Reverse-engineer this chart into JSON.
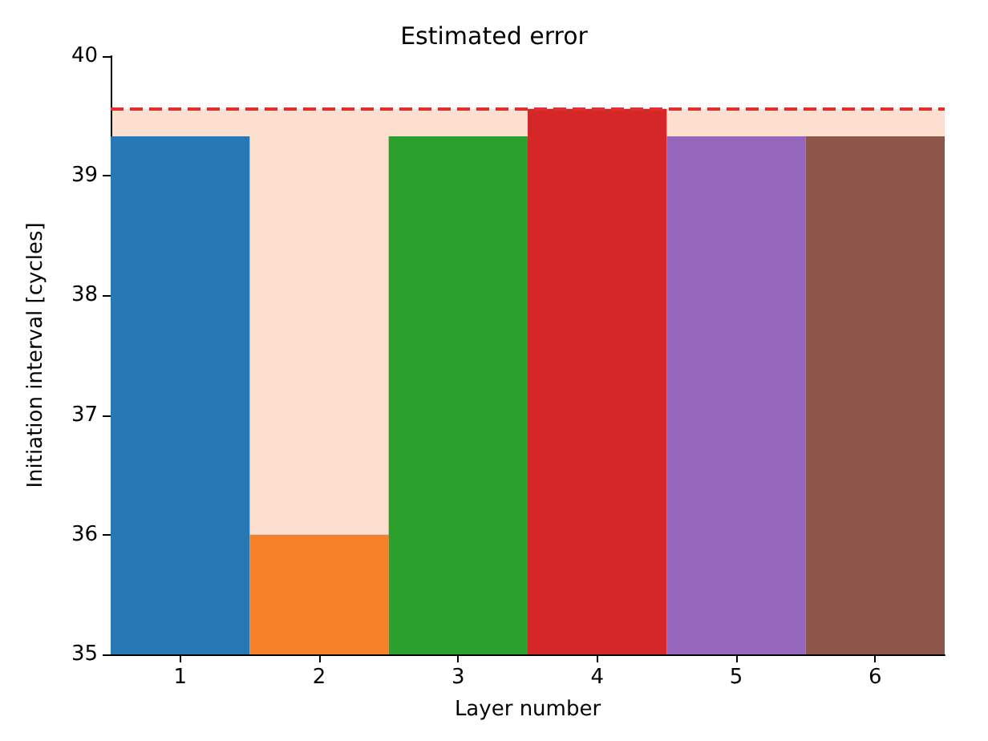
{
  "chart_data": {
    "type": "bar",
    "title": "Estimated error",
    "xlabel": "Layer number",
    "ylabel": "Initiation interval [cycles]",
    "categories": [
      "1",
      "2",
      "3",
      "4",
      "5",
      "6"
    ],
    "values": [
      39.33,
      36.0,
      39.33,
      39.56,
      39.33,
      39.33
    ],
    "colors": [
      "#2878b5",
      "#f58025",
      "#2ca02c",
      "#d62728",
      "#9467bd",
      "#8c564b"
    ],
    "ylim": [
      35,
      40
    ],
    "yticks": [
      35,
      36,
      37,
      38,
      39,
      40
    ],
    "grid": false,
    "bands": [
      {
        "axis": "y",
        "from": 35,
        "to": 39.56,
        "color": "#fddfd0"
      }
    ],
    "ref_lines": [
      {
        "axis": "y",
        "value": 39.56,
        "color": "#e03030",
        "line_style": "dashed"
      }
    ]
  }
}
